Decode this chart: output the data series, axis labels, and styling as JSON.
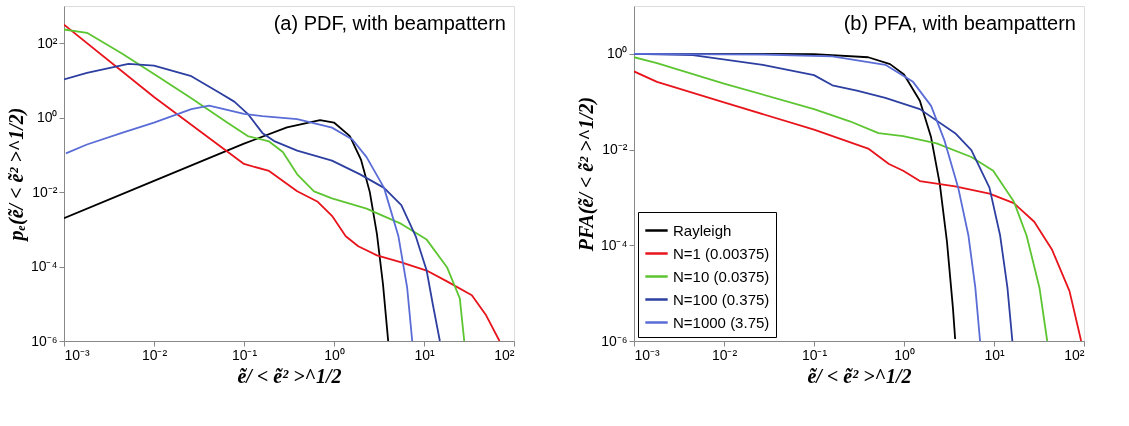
{
  "chart_data": [
    {
      "type": "line",
      "title": "(a) PDF, with beampattern",
      "xlabel": "ẽ/ < ẽ² >^1/2",
      "ylabel": "pₑ(ẽ/ < ẽ² >^1/2)",
      "log": "xy",
      "legend": false,
      "xlim": [
        0.001,
        100
      ],
      "ylim": [
        1e-06,
        1000
      ],
      "xticks": [
        {
          "value": 0.001,
          "label": "10⁻³"
        },
        {
          "value": 0.01,
          "label": "10⁻²"
        },
        {
          "value": 0.1,
          "label": "10⁻¹"
        },
        {
          "value": 1,
          "label": "10⁰"
        },
        {
          "value": 10,
          "label": "10¹"
        },
        {
          "value": 100,
          "label": "10²"
        }
      ],
      "yticks": [
        {
          "value": 1e-06,
          "label": "10⁻⁶"
        },
        {
          "value": 0.0001,
          "label": "10⁻⁴"
        },
        {
          "value": 0.01,
          "label": "10⁻²"
        },
        {
          "value": 1,
          "label": "10⁰"
        },
        {
          "value": 100,
          "label": "10²"
        }
      ],
      "series": [
        {
          "color": "#000000",
          "x": [
            0.001,
            0.01,
            0.1,
            0.3,
            0.7,
            1,
            1.5,
            2,
            2.5,
            3,
            3.5,
            4
          ],
          "values": [
            0.002,
            0.02,
            0.2,
            0.55,
            0.86,
            0.74,
            0.32,
            0.073,
            0.01,
            0.00074,
            3.4e-05,
            1e-06
          ]
        },
        {
          "color": "#e8141c",
          "x": [
            0.001,
            0.01,
            0.1,
            0.19,
            0.39,
            0.66,
            0.95,
            1.35,
            1.86,
            3.0,
            5.6,
            10.7,
            18,
            34,
            49,
            69
          ],
          "values": [
            316,
            3.6,
            0.057,
            0.037,
            0.0105,
            0.0055,
            0.0023,
            0.00065,
            0.00035,
            0.0002,
            0.00013,
            7.8e-05,
            4e-05,
            1.7e-05,
            4.9e-06,
            1e-06
          ]
        },
        {
          "color": "#5cc531",
          "x": [
            0.001,
            0.0018,
            0.0044,
            0.01,
            0.026,
            0.065,
            0.11,
            0.19,
            0.27,
            0.39,
            0.6,
            0.95,
            2.3,
            5.6,
            10.7,
            18,
            25,
            28
          ],
          "values": [
            234,
            190,
            53,
            15,
            3.3,
            0.74,
            0.32,
            0.23,
            0.12,
            0.03,
            0.0105,
            0.0068,
            0.0036,
            0.0014,
            0.00053,
            9.6e-05,
            1.4e-05,
            1e-06
          ]
        },
        {
          "color": "#2d3fa0",
          "x": [
            0.001,
            0.0018,
            0.0052,
            0.01,
            0.026,
            0.054,
            0.078,
            0.11,
            0.16,
            0.22,
            0.39,
            0.95,
            1.95,
            3.6,
            5.6,
            8.1,
            10.7,
            12.6,
            15
          ],
          "values": [
            10.7,
            16,
            28,
            25,
            13,
            4.6,
            2.7,
            1.27,
            0.39,
            0.23,
            0.13,
            0.07,
            0.03,
            0.013,
            0.0045,
            0.00065,
            7.8e-05,
            9e-06,
            1e-06
          ]
        },
        {
          "color": "#5a6cd6",
          "x": [
            0.00105,
            0.0018,
            0.0044,
            0.01,
            0.026,
            0.041,
            0.1,
            0.16,
            0.39,
            0.95,
            1.6,
            2.3,
            3.6,
            5.2,
            6.5,
            7.4
          ],
          "values": [
            0.11,
            0.19,
            0.39,
            0.74,
            1.7,
            2.1,
            1.26,
            1.1,
            0.91,
            0.54,
            0.26,
            0.087,
            0.013,
            0.00065,
            2.7e-05,
            1e-06
          ]
        }
      ]
    },
    {
      "type": "line",
      "title": "(b) PFA, with beampattern",
      "xlabel": "ẽ/ < ẽ² >^1/2",
      "ylabel": "PFA(ẽ/ < ẽ² >^1/2)",
      "log": "xy",
      "legend": "bottom left",
      "xlim": [
        0.001,
        100
      ],
      "ylim": [
        1e-06,
        10
      ],
      "xticks": [
        {
          "value": 0.001,
          "label": "10⁻³"
        },
        {
          "value": 0.01,
          "label": "10⁻²"
        },
        {
          "value": 0.1,
          "label": "10⁻¹"
        },
        {
          "value": 1,
          "label": "10⁰"
        },
        {
          "value": 10,
          "label": "10¹"
        },
        {
          "value": 100,
          "label": "10²"
        }
      ],
      "yticks": [
        {
          "value": 1e-06,
          "label": "10⁻⁶"
        },
        {
          "value": 0.0001,
          "label": "10⁻⁴"
        },
        {
          "value": 0.01,
          "label": "10⁻²"
        },
        {
          "value": 1,
          "label": "10⁰"
        }
      ],
      "series": [
        {
          "name": "Rayleigh",
          "color": "#000000",
          "x": [
            0.001,
            0.1,
            0.4,
            0.7,
            1,
            1.5,
            2,
            2.5,
            3,
            3.5,
            3.7
          ],
          "values": [
            1,
            0.99,
            0.85,
            0.61,
            0.37,
            0.105,
            0.018,
            0.0019,
            0.00012,
            4.8e-06,
            1.1e-06
          ]
        },
        {
          "name": "N=1 (0.00375)",
          "color": "#e8141c",
          "x": [
            0.001,
            0.0018,
            0.01,
            0.1,
            0.4,
            0.68,
            0.98,
            1.5,
            3.7,
            8.9,
            16.6,
            28,
            44,
            69,
            93
          ],
          "values": [
            0.43,
            0.26,
            0.097,
            0.026,
            0.0105,
            0.005,
            0.0036,
            0.0022,
            0.0017,
            0.0012,
            0.00076,
            0.00031,
            8.2e-05,
            1.1e-05,
            1e-06
          ]
        },
        {
          "name": "N=10 (0.0375)",
          "color": "#5cc531",
          "x": [
            0.001,
            0.0018,
            0.01,
            0.1,
            0.25,
            0.52,
            0.98,
            2.3,
            5.6,
            9.8,
            16.6,
            23,
            32,
            39
          ],
          "values": [
            0.85,
            0.64,
            0.24,
            0.07,
            0.039,
            0.022,
            0.019,
            0.0135,
            0.007,
            0.0036,
            0.00082,
            0.00016,
            1.3e-05,
            1e-06
          ]
        },
        {
          "name": "N=100 (0.375)",
          "color": "#2d3fa0",
          "x": [
            0.001,
            0.0045,
            0.027,
            0.1,
            0.16,
            0.3,
            0.62,
            1.5,
            3.7,
            5.6,
            8.9,
            11.7,
            14.1,
            16
          ],
          "values": [
            1,
            0.94,
            0.59,
            0.36,
            0.22,
            0.17,
            0.12,
            0.07,
            0.022,
            0.0097,
            0.0016,
            0.00016,
            1.3e-05,
            1e-06
          ]
        },
        {
          "name": "N=1000 (3.75)",
          "color": "#5a6cd6",
          "x": [
            0.001,
            0.027,
            0.16,
            0.62,
            1.26,
            2,
            2.8,
            4,
            5.2,
            6.2,
            7
          ],
          "values": [
            1,
            0.97,
            0.89,
            0.59,
            0.26,
            0.082,
            0.016,
            0.0016,
            0.00016,
            1.3e-05,
            1e-06
          ]
        }
      ]
    }
  ]
}
